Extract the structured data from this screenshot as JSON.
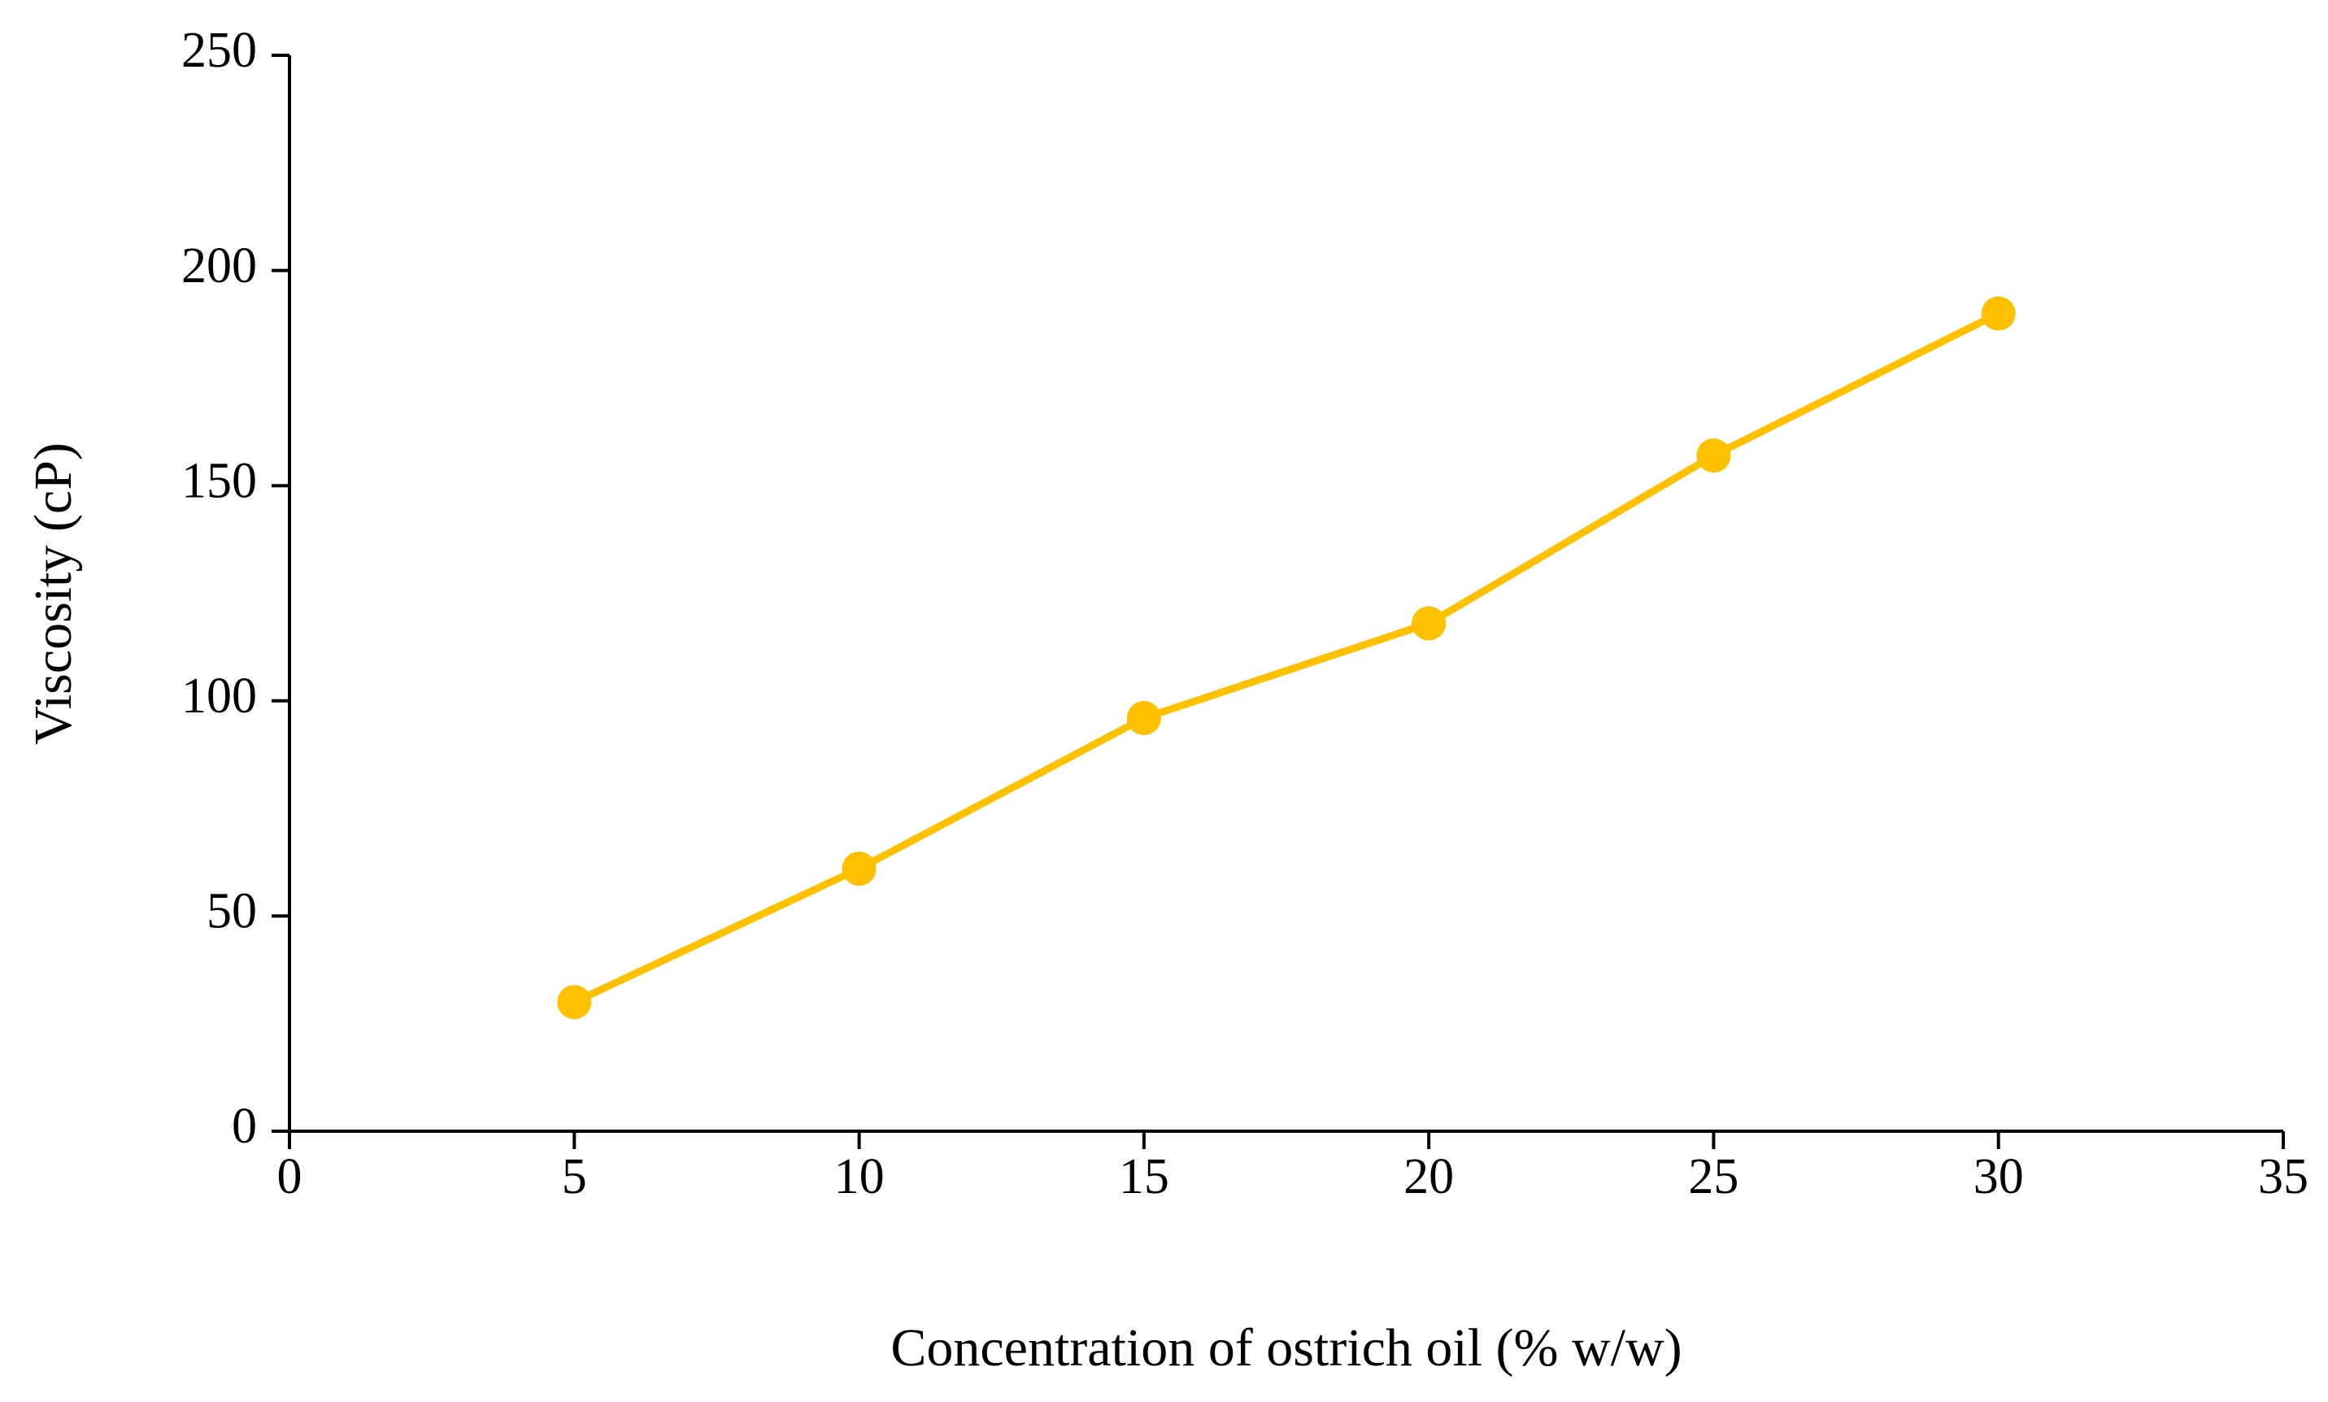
{
  "chart_data": {
    "type": "line",
    "x_label": "Concentration of ostrich oil (% w/w)",
    "y_label": "Viscosity (cP)",
    "x": [
      5,
      10,
      15,
      20,
      25,
      30
    ],
    "series": [
      {
        "color": "#FFC000",
        "values": [
          30,
          61,
          96,
          118,
          157,
          190
        ]
      }
    ],
    "xlim": [
      0,
      35
    ],
    "xticks": [
      0,
      5,
      10,
      15,
      20,
      25,
      30,
      35
    ],
    "ylim": [
      0,
      250
    ],
    "yticks": [
      0,
      50,
      100,
      150,
      200,
      250
    ],
    "grid": false
  }
}
